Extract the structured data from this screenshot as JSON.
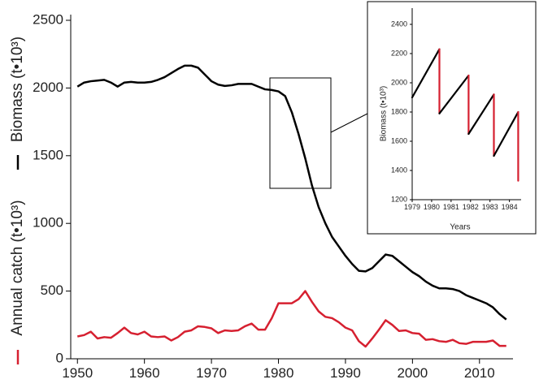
{
  "chart_data": [
    {
      "type": "line",
      "x": [
        1950,
        1951,
        1952,
        1953,
        1954,
        1955,
        1956,
        1957,
        1958,
        1959,
        1960,
        1961,
        1962,
        1963,
        1964,
        1965,
        1966,
        1967,
        1968,
        1969,
        1970,
        1971,
        1972,
        1973,
        1974,
        1975,
        1976,
        1977,
        1978,
        1979,
        1980,
        1981,
        1982,
        1983,
        1984,
        1985,
        1986,
        1987,
        1988,
        1989,
        1990,
        1991,
        1992,
        1993,
        1994,
        1995,
        1996,
        1997,
        1998,
        1999,
        2000,
        2001,
        2002,
        2003,
        2004,
        2005,
        2006,
        2007,
        2008,
        2009,
        2010,
        2011,
        2012,
        2013,
        2014
      ],
      "series": [
        {
          "name": "Biomass (t•10³)",
          "color": "#000000",
          "values": [
            2010,
            2040,
            2050,
            2055,
            2060,
            2040,
            2010,
            2040,
            2045,
            2040,
            2040,
            2045,
            2060,
            2080,
            2110,
            2140,
            2165,
            2165,
            2150,
            2100,
            2050,
            2025,
            2015,
            2020,
            2030,
            2030,
            2030,
            2010,
            1990,
            1985,
            1975,
            1940,
            1820,
            1660,
            1480,
            1280,
            1120,
            1000,
            900,
            830,
            760,
            700,
            650,
            645,
            670,
            720,
            770,
            760,
            720,
            680,
            640,
            610,
            570,
            540,
            520,
            520,
            515,
            500,
            470,
            450,
            430,
            410,
            380,
            330,
            290
          ]
        },
        {
          "name": "Annual catch (t•10³)",
          "color": "#d62030",
          "values": [
            165,
            175,
            200,
            150,
            160,
            155,
            190,
            230,
            190,
            180,
            200,
            165,
            160,
            165,
            135,
            160,
            200,
            210,
            240,
            235,
            225,
            190,
            210,
            205,
            210,
            240,
            260,
            215,
            215,
            300,
            410,
            410,
            410,
            440,
            500,
            420,
            350,
            310,
            300,
            270,
            230,
            210,
            130,
            90,
            150,
            215,
            285,
            250,
            205,
            210,
            190,
            185,
            140,
            145,
            130,
            125,
            140,
            115,
            110,
            125,
            125,
            125,
            135,
            95,
            95
          ]
        }
      ],
      "xlim": [
        1949,
        2015
      ],
      "xticks": [
        1950,
        1960,
        1970,
        1980,
        1990,
        2000,
        2010
      ],
      "ylim": [
        0,
        2500
      ],
      "yticks": [
        0,
        500,
        1000,
        1500,
        2000,
        2500
      ]
    },
    {
      "type": "sawtooth",
      "x": [
        1979,
        1980.4,
        1980.4,
        1981.9,
        1981.9,
        1983.2,
        1983.2,
        1984.45,
        1984.45
      ],
      "values": [
        1900,
        2230,
        1790,
        2050,
        1650,
        1920,
        1500,
        1800,
        1330
      ],
      "rise_color": "#000000",
      "drop_color": "#d62030",
      "ylabel": "Biomass (t•10³)",
      "xlabel": "Years",
      "xlim": [
        1979,
        1984.6
      ],
      "xticks": [
        1979,
        1980,
        1981,
        1982,
        1983,
        1984
      ],
      "ylim": [
        1200,
        2400
      ],
      "yticks": [
        1200,
        1400,
        1600,
        1800,
        2000,
        2200,
        2400
      ]
    }
  ]
}
